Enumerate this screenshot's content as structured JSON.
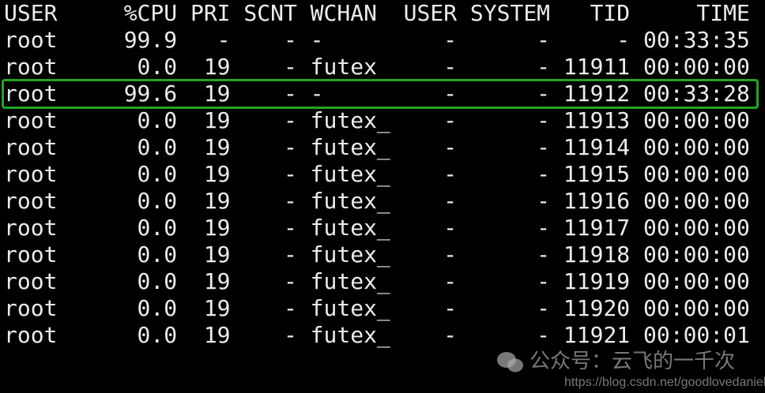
{
  "header": [
    "USER",
    "%CPU",
    "PRI",
    "SCNT",
    "WCHAN",
    "USER",
    "SYSTEM",
    "TID",
    "TIME"
  ],
  "rows": [
    [
      "root",
      "99.9",
      "-",
      "-",
      "-",
      "-",
      "-",
      "-",
      "00:33:35"
    ],
    [
      "root",
      "0.0",
      "19",
      "-",
      "futex",
      "-",
      "-",
      "11911",
      "00:00:00"
    ],
    [
      "root",
      "99.6",
      "19",
      "-",
      "-",
      "-",
      "-",
      "11912",
      "00:33:28"
    ],
    [
      "root",
      "0.0",
      "19",
      "-",
      "futex_",
      "-",
      "-",
      "11913",
      "00:00:00"
    ],
    [
      "root",
      "0.0",
      "19",
      "-",
      "futex_",
      "-",
      "-",
      "11914",
      "00:00:00"
    ],
    [
      "root",
      "0.0",
      "19",
      "-",
      "futex_",
      "-",
      "-",
      "11915",
      "00:00:00"
    ],
    [
      "root",
      "0.0",
      "19",
      "-",
      "futex_",
      "-",
      "-",
      "11916",
      "00:00:00"
    ],
    [
      "root",
      "0.0",
      "19",
      "-",
      "futex_",
      "-",
      "-",
      "11917",
      "00:00:00"
    ],
    [
      "root",
      "0.0",
      "19",
      "-",
      "futex_",
      "-",
      "-",
      "11918",
      "00:00:00"
    ],
    [
      "root",
      "0.0",
      "19",
      "-",
      "futex_",
      "-",
      "-",
      "11919",
      "00:00:00"
    ],
    [
      "root",
      "0.0",
      "19",
      "-",
      "futex_",
      "-",
      "-",
      "11920",
      "00:00:00"
    ],
    [
      "root",
      "0.0",
      "19",
      "-",
      "futex_",
      "-",
      "-",
      "11921",
      "00:00:01"
    ]
  ],
  "highlighted_row": 2,
  "highlight_color": "#23a523",
  "watermark": {
    "title": "公众号：云飞的一千次",
    "url": "https://blog.csdn.net/goodlovedaniel",
    "icon": "wechat-icon"
  }
}
